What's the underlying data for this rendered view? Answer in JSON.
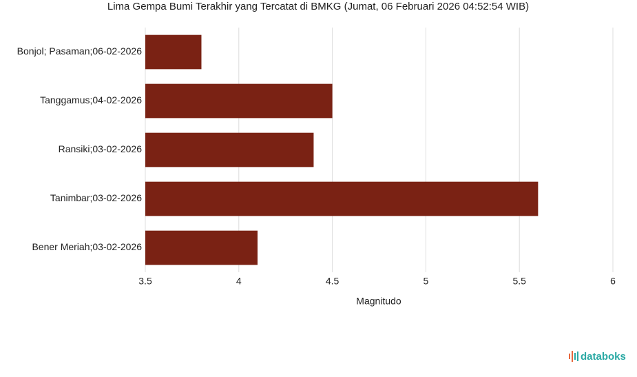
{
  "chart_data": {
    "type": "bar",
    "orientation": "horizontal",
    "title": "Lima Gempa Bumi Terakhir yang Tercatat di BMKG (Jumat, 06 Februari 2026 04:52:54 WIB)",
    "categories": [
      "Bonjol; Pasaman;06-02-2026",
      "Tanggamus;04-02-2026",
      "Ransiki;03-02-2026",
      "Tanimbar;03-02-2026",
      "Bener Meriah;03-02-2026"
    ],
    "values": [
      3.8,
      4.5,
      4.4,
      5.6,
      4.1
    ],
    "color": "#7a2214",
    "xlabel": "Magnitudo",
    "xlim": [
      3.5,
      6
    ],
    "xticks": [
      3.5,
      4,
      4.5,
      5,
      5.5,
      6
    ],
    "grid": true,
    "brand": "databoks"
  }
}
